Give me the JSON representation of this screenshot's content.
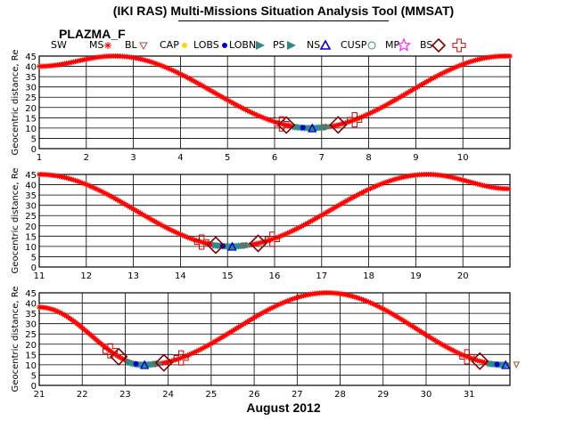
{
  "window": {
    "title": "(IKI RAS) Multi-Missions Situation Analysis Tool (MMSAT)",
    "mission": "PLAZMA_F",
    "x_axis_title": "August 2012"
  },
  "legend": [
    {
      "label": "SW",
      "icon": "none",
      "color": "#000000"
    },
    {
      "label": "MS",
      "icon": "asterisk",
      "color": "#ff0000"
    },
    {
      "label": "BL",
      "icon": "triangle-down",
      "color": "#a0522d"
    },
    {
      "label": "CAP",
      "icon": "dot",
      "color": "#ffd700"
    },
    {
      "label": "LOBS",
      "icon": "dot",
      "color": "#0000cc"
    },
    {
      "label": "LOBN",
      "icon": "flag",
      "color": "#2e8b8b"
    },
    {
      "label": "PS",
      "icon": "flag",
      "color": "#2e8b8b"
    },
    {
      "label": "NS",
      "icon": "triangle",
      "color": "#0000cc"
    },
    {
      "label": "CUSP",
      "icon": "circle",
      "color": "#2e8b8b"
    },
    {
      "label": "MP",
      "icon": "star",
      "color": "#ff00ff"
    },
    {
      "label": "BS",
      "icon": "diamond",
      "color": "#800000"
    },
    {
      "label": "",
      "icon": "cross",
      "color": "#cc0000"
    }
  ],
  "colors": {
    "trajectory": "#ff0000",
    "bow_shock": "#800000",
    "bow_shock_cross": "#cc0000",
    "plasma_sheet": "#2e8b8b",
    "lobe_south": "#0000cc",
    "boundary_layer": "#a0522d",
    "grid": "#000000"
  },
  "chart_data": [
    {
      "type": "line",
      "ylabel": "Geocentric distance, Re",
      "xlim": [
        1,
        11
      ],
      "ylim": [
        0,
        45
      ],
      "yticks": [
        "0",
        "5",
        "10",
        "15",
        "20",
        "25",
        "30",
        "35",
        "40",
        "45"
      ],
      "xticks": [
        "1",
        "2",
        "3",
        "4",
        "5",
        "6",
        "7",
        "8",
        "9",
        "10"
      ],
      "grid": true,
      "series": [
        {
          "x": [
            1,
            2.6,
            6.8,
            10.9
          ],
          "y": [
            40,
            45,
            10,
            45
          ]
        }
      ],
      "perigees": [
        6.8
      ],
      "apogees": [
        2.6
      ],
      "bs_crossings": [
        6.25,
        7.35
      ],
      "cross_markers": [
        6.15,
        7.7
      ]
    },
    {
      "type": "line",
      "ylabel": "Geocentric distance, Re",
      "xlim": [
        11,
        21
      ],
      "ylim": [
        0,
        45
      ],
      "yticks": [
        "0",
        "5",
        "10",
        "15",
        "20",
        "25",
        "30",
        "35",
        "40",
        "45"
      ],
      "xticks": [
        "11",
        "12",
        "13",
        "14",
        "15",
        "16",
        "17",
        "18",
        "19",
        "20"
      ],
      "grid": true,
      "series": [
        {
          "x": [
            11,
            15.1,
            19.25,
            21
          ],
          "y": [
            45,
            10,
            45,
            38
          ]
        }
      ],
      "perigees": [
        15.1
      ],
      "apogees": [
        19.25
      ],
      "bs_crossings": [
        14.75,
        15.65
      ],
      "cross_markers": [
        14.45,
        15.95
      ]
    },
    {
      "type": "line",
      "ylabel": "Geocentric distance, Re",
      "xlim": [
        21,
        31.95
      ],
      "ylim": [
        0,
        45
      ],
      "yticks": [
        "0",
        "5",
        "10",
        "15",
        "20",
        "25",
        "30",
        "35",
        "40",
        "45"
      ],
      "xticks": [
        "21",
        "22",
        "23",
        "24",
        "25",
        "26",
        "27",
        "28",
        "29",
        "30",
        "31"
      ],
      "grid": true,
      "series": [
        {
          "x": [
            21,
            23.45,
            27.7,
            31.85
          ],
          "y": [
            38,
            10,
            45,
            10
          ]
        }
      ],
      "perigees": [
        23.45,
        31.85
      ],
      "apogees": [
        27.7
      ],
      "bs_crossings": [
        22.85,
        23.9,
        31.25
      ],
      "cross_markers": [
        22.65,
        24.3,
        30.95
      ]
    }
  ]
}
